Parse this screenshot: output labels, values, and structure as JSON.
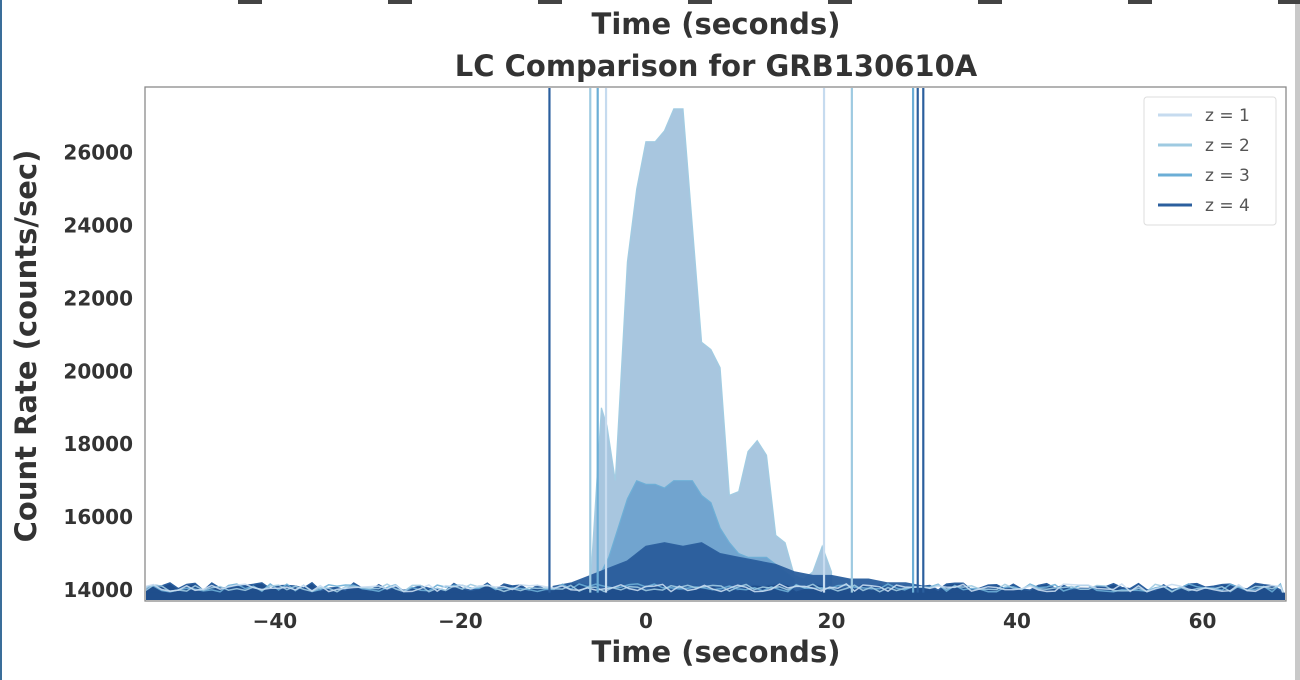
{
  "top_strip": {
    "xlabel": "Time (seconds)"
  },
  "chart_data": {
    "type": "area",
    "title": "LC Comparison for GRB130610A",
    "xlabel": "Time (seconds)",
    "ylabel": "Count Rate (counts/sec)",
    "xlim": [
      -54,
      69
    ],
    "ylim": [
      13700,
      27800
    ],
    "xticks": [
      -40,
      -20,
      0,
      20,
      40,
      60
    ],
    "xtick_labels": [
      "−40",
      "−20",
      "0",
      "20",
      "40",
      "60"
    ],
    "yticks": [
      14000,
      16000,
      18000,
      20000,
      22000,
      24000,
      26000
    ],
    "yticks_labels": [
      "14000",
      "16000",
      "18000",
      "20000",
      "22000",
      "24000",
      "26000"
    ],
    "grid": false,
    "legend_position": "top-right",
    "colors": {
      "z1": "#c6dbef",
      "z2": "#9ecae1",
      "z3": "#6baed6",
      "z4": "#2b5f9e",
      "z2_fill": "#a4c4de",
      "z3_fill": "#6fa3cf",
      "z4_fill": "#2a5d9c",
      "baseline": "#1f4e8c"
    },
    "series": [
      {
        "name": "z = 1",
        "x": [
          -4.3,
          19.2
        ],
        "values": [
          14050,
          14100
        ],
        "vlines": [
          -4.3,
          19.2
        ]
      },
      {
        "name": "z = 2",
        "x": [
          -6,
          -4.8,
          -4.2,
          -3.3,
          -2,
          -1,
          0,
          1,
          2,
          3,
          4,
          5,
          6,
          7,
          8,
          9,
          10,
          11,
          12,
          13,
          14,
          15,
          16,
          17,
          18,
          19,
          20
        ],
        "values": [
          14100,
          19000,
          18500,
          17000,
          23000,
          25000,
          26300,
          26300,
          26600,
          27200,
          27200,
          24000,
          20800,
          20600,
          20100,
          16600,
          16700,
          17800,
          18100,
          17700,
          15500,
          15300,
          14400,
          14300,
          14500,
          15200,
          14500
        ],
        "vlines": [
          -6,
          22.2
        ]
      },
      {
        "name": "z = 3",
        "x": [
          -6,
          -5,
          -4,
          -2,
          -1,
          0,
          1,
          2,
          3,
          4,
          5,
          6,
          7,
          8,
          9,
          10,
          11,
          12,
          13,
          14,
          15,
          16
        ],
        "values": [
          14200,
          14400,
          14900,
          16500,
          17000,
          16900,
          16900,
          16800,
          17000,
          17000,
          17000,
          16600,
          16400,
          15700,
          15300,
          15000,
          14900,
          14900,
          14900,
          14700,
          14500,
          14300
        ],
        "vlines": [
          -5.2,
          28.8
        ]
      },
      {
        "name": "z = 4",
        "x": [
          -10,
          -8,
          -6,
          -4,
          -2,
          0,
          2,
          4,
          6,
          8,
          10,
          12,
          14,
          16,
          18,
          20,
          22,
          24,
          26,
          28,
          30
        ],
        "values": [
          14100,
          14200,
          14400,
          14600,
          14800,
          15200,
          15300,
          15200,
          15300,
          15000,
          14900,
          14800,
          14700,
          14500,
          14400,
          14400,
          14300,
          14300,
          14200,
          14200,
          14100
        ],
        "vlines": [
          -10.4,
          29.3,
          29.9
        ]
      }
    ]
  }
}
